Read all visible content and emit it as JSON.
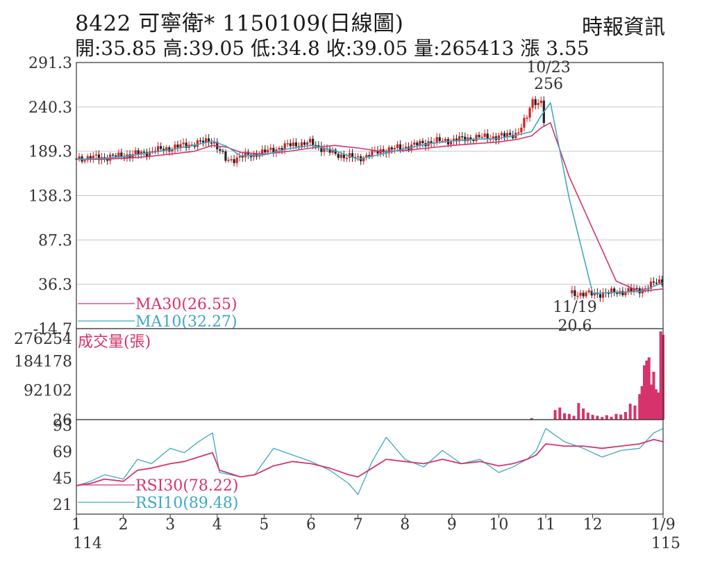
{
  "header": {
    "title": "8422  可寧衛* 1150109(日線圖)",
    "brand": "時報資訊",
    "quote": "開:35.85 高:39.05 低:34.8 收:39.05 量:265413 漲 3.55"
  },
  "colors": {
    "ma30": "#d6336c",
    "ma10": "#3fa7c4",
    "up_candle": "#d62020",
    "down_candle": "#222222",
    "volume": "#d6336c",
    "rsi30": "#d6336c",
    "rsi10": "#3fa7c4",
    "grid": "#c8c8c8",
    "axis": "#333333"
  },
  "chart_data": [
    {
      "type": "line",
      "panel": "price",
      "y_ticks": [
        "291.3",
        "240.3",
        "189.3",
        "138.3",
        "87.3",
        "36.3",
        "-14.7"
      ],
      "ylim": [
        -14.7,
        291.3
      ],
      "grid": true,
      "annotations": [
        {
          "date": "10/23",
          "value": "256",
          "position": "above"
        },
        {
          "date": "11/19",
          "value": "20.6",
          "position": "below"
        }
      ],
      "legend": [
        {
          "label": "MA30(26.55)",
          "series": "MA30"
        },
        {
          "label": "MA10(32.27)",
          "series": "MA10"
        }
      ],
      "x": [
        1,
        1.5,
        2,
        2.5,
        3,
        3.5,
        3.9,
        4.2,
        4.5,
        5,
        5.5,
        6,
        6.5,
        7,
        7.5,
        8,
        8.5,
        9,
        9.5,
        10,
        10.4,
        10.7,
        10.9,
        11.1,
        11.5,
        12,
        12.5,
        13,
        13.5
      ],
      "series": [
        {
          "name": "MA10",
          "values": [
            180,
            181,
            183,
            187,
            191,
            196,
            201,
            195,
            184,
            185,
            192,
            196,
            190,
            180,
            186,
            192,
            198,
            201,
            203,
            204,
            208,
            212,
            230,
            245,
            135,
            26,
            27,
            28,
            38
          ]
        },
        {
          "name": "MA30",
          "values": [
            180,
            180,
            181,
            183,
            186,
            189,
            196,
            194,
            188,
            186,
            189,
            193,
            196,
            193,
            189,
            190,
            193,
            196,
            198,
            200,
            203,
            207,
            216,
            222,
            160,
            100,
            40,
            28,
            31
          ]
        }
      ],
      "candle_trend": {
        "x": [
          1,
          1.5,
          2,
          2.5,
          3,
          3.5,
          3.9,
          4.2,
          4.5,
          5,
          5.5,
          6,
          6.5,
          7,
          7.5,
          8,
          8.5,
          9,
          9.5,
          10,
          10.4,
          10.6,
          10.7,
          10.9,
          11.5,
          12,
          12.5,
          13,
          13.4
        ],
        "values": [
          181,
          182,
          184,
          188,
          193,
          198,
          202,
          178,
          183,
          188,
          196,
          199,
          186,
          181,
          190,
          194,
          200,
          202,
          205,
          206,
          210,
          228,
          248,
          245,
          26,
          25,
          27,
          30,
          39
        ]
      }
    },
    {
      "type": "bar",
      "panel": "volume",
      "ylabel": "成交量(張)",
      "y_ticks": [
        "276254",
        "184178",
        "92102",
        "26"
      ],
      "ylim": [
        26,
        276254
      ],
      "x": [
        10.7,
        11.2,
        11.3,
        11.4,
        11.5,
        11.6,
        11.7,
        11.8,
        11.9,
        12.0,
        12.1,
        12.2,
        12.3,
        12.4,
        12.5,
        12.6,
        12.7,
        12.8,
        12.9,
        13.0,
        13.05,
        13.1,
        13.15,
        13.2,
        13.25,
        13.3,
        13.35,
        13.4,
        13.45,
        13.5
      ],
      "values": [
        5000,
        30000,
        38000,
        20000,
        18000,
        12000,
        52000,
        35000,
        22000,
        15000,
        12000,
        8000,
        14000,
        9000,
        18000,
        16000,
        24000,
        50000,
        44000,
        80000,
        105000,
        170000,
        185000,
        195000,
        110000,
        150000,
        95000,
        85000,
        276254,
        265413
      ]
    },
    {
      "type": "line",
      "panel": "rsi",
      "y_ticks": [
        "93",
        "69",
        "45",
        "21"
      ],
      "ylim": [
        21,
        93
      ],
      "legend": [
        {
          "label": "RSI30(78.22)",
          "series": "RSI30"
        },
        {
          "label": "RSI10(89.48)",
          "series": "RSI10"
        }
      ],
      "x": [
        1,
        1.3,
        1.6,
        2,
        2.3,
        2.6,
        3,
        3.3,
        3.6,
        3.9,
        4.05,
        4.5,
        4.8,
        5.2,
        5.6,
        6,
        6.4,
        6.8,
        7,
        7.3,
        7.6,
        8,
        8.4,
        8.8,
        9.2,
        9.6,
        10,
        10.3,
        10.6,
        10.8,
        11,
        11.4,
        11.8,
        12.2,
        12.6,
        13,
        13.3,
        13.5
      ],
      "series": [
        {
          "name": "RSI10",
          "values": [
            38,
            42,
            48,
            44,
            62,
            58,
            72,
            68,
            78,
            86,
            50,
            46,
            48,
            72,
            66,
            60,
            52,
            40,
            30,
            60,
            82,
            62,
            55,
            70,
            58,
            62,
            50,
            55,
            62,
            70,
            90,
            78,
            72,
            64,
            70,
            72,
            86,
            90
          ]
        },
        {
          "name": "RSI30",
          "values": [
            38,
            40,
            44,
            42,
            52,
            54,
            58,
            60,
            64,
            68,
            52,
            46,
            48,
            56,
            60,
            58,
            54,
            48,
            46,
            54,
            62,
            60,
            58,
            62,
            58,
            60,
            56,
            58,
            62,
            66,
            76,
            74,
            74,
            72,
            74,
            76,
            80,
            78
          ]
        }
      ]
    }
  ],
  "x_axis": {
    "ticks": [
      {
        "value": 1,
        "label": "1"
      },
      {
        "value": 2,
        "label": "2"
      },
      {
        "value": 3,
        "label": "3"
      },
      {
        "value": 4,
        "label": "4"
      },
      {
        "value": 5,
        "label": "5"
      },
      {
        "value": 6,
        "label": "6"
      },
      {
        "value": 7,
        "label": "7"
      },
      {
        "value": 8,
        "label": "8"
      },
      {
        "value": 9,
        "label": "9"
      },
      {
        "value": 10,
        "label": "10"
      },
      {
        "value": 11,
        "label": "11"
      },
      {
        "value": 12,
        "label": "12"
      },
      {
        "value": 13.5,
        "label": "1/9"
      }
    ],
    "year_start": "114",
    "year_end": "115"
  }
}
